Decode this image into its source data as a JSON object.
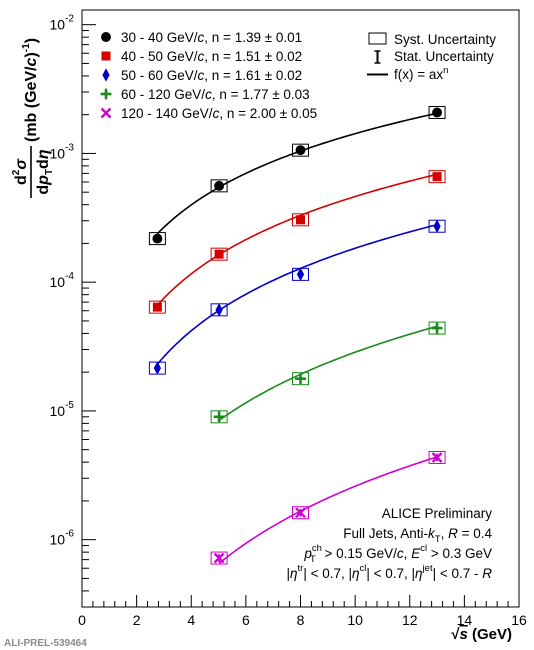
{
  "chart_data": {
    "type": "scatter",
    "x_scale": "linear",
    "y_scale": "log",
    "xlim": [
      0,
      16
    ],
    "ylim": [
      3e-07,
      0.013
    ],
    "x_ticks": [
      0,
      2,
      4,
      6,
      8,
      10,
      12,
      14,
      16
    ],
    "x_tick_labels": [
      "0",
      "2",
      "4",
      "6",
      "8",
      "10",
      "12",
      "14",
      "16"
    ],
    "y_ticks": [
      1e-06,
      1e-05,
      0.0001,
      0.001,
      0.01
    ],
    "y_tick_labels": [
      {
        "base": "10",
        "exp": "-6"
      },
      {
        "base": "10",
        "exp": "-5"
      },
      {
        "base": "10",
        "exp": "-4"
      },
      {
        "base": "10",
        "exp": "-3"
      },
      {
        "base": "10",
        "exp": "-2"
      }
    ],
    "xlabel": {
      "root": "√",
      "var": "s",
      "unit": " (GeV)"
    },
    "ylabel": {
      "num_d": "d",
      "num_sup": "2",
      "num_sigma": "σ",
      "den_d1": "d",
      "den_p": "p",
      "den_sub": "T",
      "den_d2": "d",
      "den_eta": "η",
      "unit_pre": "(mb (GeV/",
      "unit_c": "c",
      "unit_mid": ")",
      "unit_sup": "-1",
      "unit_post": ")"
    },
    "grid": false,
    "legend_position": "top-right",
    "series": [
      {
        "name": "30 - 40 GeV/c, n = 1.39 ± 0.01",
        "label_parts": [
          "30 - 40 GeV/",
          "c",
          ", n = 1.39 ± 0.01"
        ],
        "color": "#000000",
        "marker": "circle",
        "x": [
          2.76,
          5.02,
          8.0,
          13.0
        ],
        "y": [
          0.000218,
          0.00056,
          0.00106,
          0.00208
        ],
        "fit_a": 5.8e-05,
        "fit_n": 1.39
      },
      {
        "name": "40 - 50 GeV/c, n = 1.51 ± 0.02",
        "label_parts": [
          "40 - 50 GeV/",
          "c",
          ", n = 1.51 ± 0.02"
        ],
        "color": "#d40000",
        "marker": "square",
        "x": [
          2.76,
          5.02,
          8.0,
          13.0
        ],
        "y": [
          6.4e-05,
          0.000165,
          0.000305,
          0.00066
        ],
        "fit_a": 1.43e-05,
        "fit_n": 1.51
      },
      {
        "name": "50 - 60 GeV/c, n = 1.61 ± 0.02",
        "label_parts": [
          "50 - 60 GeV/",
          "c",
          ", n = 1.61 ± 0.02"
        ],
        "color": "#0000c8",
        "marker": "diamond",
        "x": [
          2.76,
          5.02,
          8.0,
          13.0
        ],
        "y": [
          2.15e-05,
          6.1e-05,
          0.000115,
          0.000272
        ],
        "fit_a": 4.5e-06,
        "fit_n": 1.61
      },
      {
        "name": "60 - 120 GeV/c, n = 1.77 ± 0.03",
        "label_parts": [
          "60 - 120 GeV/",
          "c",
          ", n = 1.77 ± 0.03"
        ],
        "color": "#1a8a1a",
        "marker": "plus",
        "x": [
          5.02,
          8.0,
          13.0
        ],
        "y": [
          9e-06,
          1.78e-05,
          4.4e-05
        ],
        "fit_a": 4.85e-07,
        "fit_n": 1.77
      },
      {
        "name": "120 - 140 GeV/c, n = 2.00 ± 0.05",
        "label_parts": [
          "120 - 140 GeV/",
          "c",
          ", n = 2.00 ± 0.05"
        ],
        "color": "#d000d0",
        "marker": "cross",
        "x": [
          5.02,
          8.0,
          13.0
        ],
        "y": [
          7.2e-07,
          1.62e-06,
          4.35e-06
        ],
        "fit_a": 2.6e-08,
        "fit_n": 2.0
      }
    ],
    "legend_extra": [
      {
        "label": "Syst. Uncertainty",
        "symbol": "open-box"
      },
      {
        "label": "Stat. Uncertainty",
        "symbol": "error-bar"
      },
      {
        "label": "f(x) = ax",
        "sup": "n",
        "symbol": "line"
      }
    ],
    "annotations": {
      "line1": "ALICE Preliminary",
      "line2_pre": "Full Jets, Anti-",
      "line2_k": "k",
      "line2_ksub": "T",
      "line2_mid": ", ",
      "line2_r": "R",
      "line2_post": " = 0.4",
      "line3_p": "p",
      "line3_psup": "ch",
      "line3_psub": "T",
      "line3_mid": " > 0.15 GeV/",
      "line3_c": "c",
      "line3_mid2": ", ",
      "line3_e": "E",
      "line3_esup": "cl",
      "line3_post": " > 0.3 GeV",
      "line4": "|η^tr| < 0.7, |η^cl| < 0.7, |η^jet| < 0.7 - R",
      "line4_parts": [
        "|",
        "η",
        "tr",
        "| < 0.7, |",
        "η",
        "cl",
        "| < 0.7, |",
        "η",
        "jet",
        "| < 0.7 - ",
        "R"
      ]
    },
    "footer": "ALI-PREL-539464"
  }
}
